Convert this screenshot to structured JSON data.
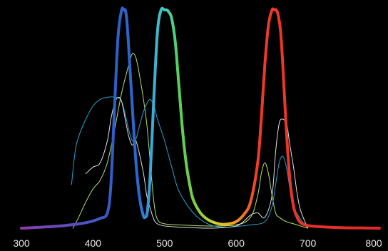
{
  "chart_data": {
    "type": "line",
    "title": "",
    "xlabel": "",
    "ylabel": "",
    "xlim": [
      300,
      800
    ],
    "ylim": [
      0,
      1.0
    ],
    "grid": false,
    "legend": "none",
    "x_ticks": [
      "300",
      "400",
      "500",
      "600",
      "700",
      "800"
    ],
    "x_tick_values": [
      300,
      400,
      500,
      600,
      700,
      800
    ],
    "background": "#000000",
    "series": [
      {
        "style": "thick",
        "gradient": true,
        "x": [
          300,
          330,
          360,
          390,
          410,
          420,
          425,
          430,
          435,
          440,
          443,
          445,
          447,
          450,
          455,
          460,
          465,
          470,
          473,
          476,
          480,
          485,
          490,
          495,
          500,
          503,
          506,
          510,
          515,
          520,
          525,
          530,
          535,
          540,
          550,
          560,
          570,
          580,
          590,
          600,
          610,
          620,
          630,
          635,
          640,
          645,
          650,
          653,
          656,
          659,
          662,
          665,
          670,
          675,
          680,
          685,
          690,
          700,
          720,
          750,
          780,
          800
        ],
        "y": [
          0.0,
          0.005,
          0.012,
          0.025,
          0.045,
          0.07,
          0.2,
          0.55,
          0.88,
          1.0,
          1.0,
          1.0,
          0.96,
          0.82,
          0.55,
          0.3,
          0.14,
          0.06,
          0.05,
          0.08,
          0.25,
          0.6,
          0.9,
          1.0,
          1.0,
          1.0,
          0.99,
          0.96,
          0.85,
          0.65,
          0.45,
          0.3,
          0.2,
          0.13,
          0.07,
          0.04,
          0.025,
          0.018,
          0.02,
          0.03,
          0.06,
          0.12,
          0.3,
          0.5,
          0.75,
          0.93,
          1.0,
          1.0,
          1.0,
          0.97,
          0.9,
          0.75,
          0.45,
          0.22,
          0.1,
          0.05,
          0.025,
          0.012,
          0.006,
          0.002,
          0.001,
          0.0
        ]
      },
      {
        "color": "#b5e066",
        "x": [
          372,
          380,
          390,
          400,
          410,
          420,
          430,
          440,
          450,
          455,
          460,
          465,
          470,
          475,
          480,
          485,
          490,
          500,
          520,
          560,
          600,
          620,
          630,
          635,
          640,
          645,
          650,
          655,
          660,
          670,
          680,
          690,
          700
        ],
        "y": [
          0.0,
          0.05,
          0.12,
          0.18,
          0.22,
          0.3,
          0.45,
          0.62,
          0.75,
          0.8,
          0.78,
          0.7,
          0.6,
          0.48,
          0.3,
          0.12,
          0.04,
          0.02,
          0.015,
          0.01,
          0.015,
          0.05,
          0.15,
          0.25,
          0.3,
          0.25,
          0.15,
          0.07,
          0.05,
          0.03,
          0.02,
          0.01,
          0.0
        ]
      },
      {
        "color": "#2a9fd0",
        "x": [
          370,
          375,
          380,
          390,
          400,
          410,
          420,
          430,
          440,
          450,
          455,
          460,
          465,
          470,
          475,
          480,
          485,
          490,
          500,
          510,
          520,
          540,
          560,
          580,
          600,
          620,
          640,
          650,
          655,
          660,
          665,
          670,
          675,
          680,
          690,
          700
        ],
        "y": [
          0.2,
          0.35,
          0.42,
          0.5,
          0.56,
          0.59,
          0.6,
          0.6,
          0.58,
          0.45,
          0.4,
          0.41,
          0.47,
          0.53,
          0.57,
          0.59,
          0.56,
          0.5,
          0.4,
          0.28,
          0.17,
          0.07,
          0.02,
          0.005,
          0.008,
          0.015,
          0.03,
          0.1,
          0.2,
          0.3,
          0.33,
          0.28,
          0.18,
          0.1,
          0.04,
          0.0
        ]
      },
      {
        "color": "#e0e0e0",
        "x": [
          390,
          400,
          410,
          420,
          425,
          430,
          435,
          440,
          445,
          450,
          455,
          460,
          470,
          475,
          480,
          485,
          490,
          500,
          520,
          540,
          560,
          580,
          600,
          610,
          620,
          630,
          640,
          650,
          655,
          660,
          665,
          670,
          672,
          675,
          680,
          685,
          690,
          700
        ],
        "y": [
          0.25,
          0.28,
          0.3,
          0.4,
          0.5,
          0.57,
          0.6,
          0.58,
          0.5,
          0.42,
          0.38,
          0.4,
          0.26,
          0.15,
          0.09,
          0.04,
          0.02,
          0.01,
          0.005,
          0.002,
          0.0,
          0.002,
          0.01,
          0.03,
          0.06,
          0.07,
          0.05,
          0.15,
          0.35,
          0.48,
          0.5,
          0.48,
          0.45,
          0.38,
          0.28,
          0.16,
          0.08,
          0.0
        ]
      }
    ]
  }
}
